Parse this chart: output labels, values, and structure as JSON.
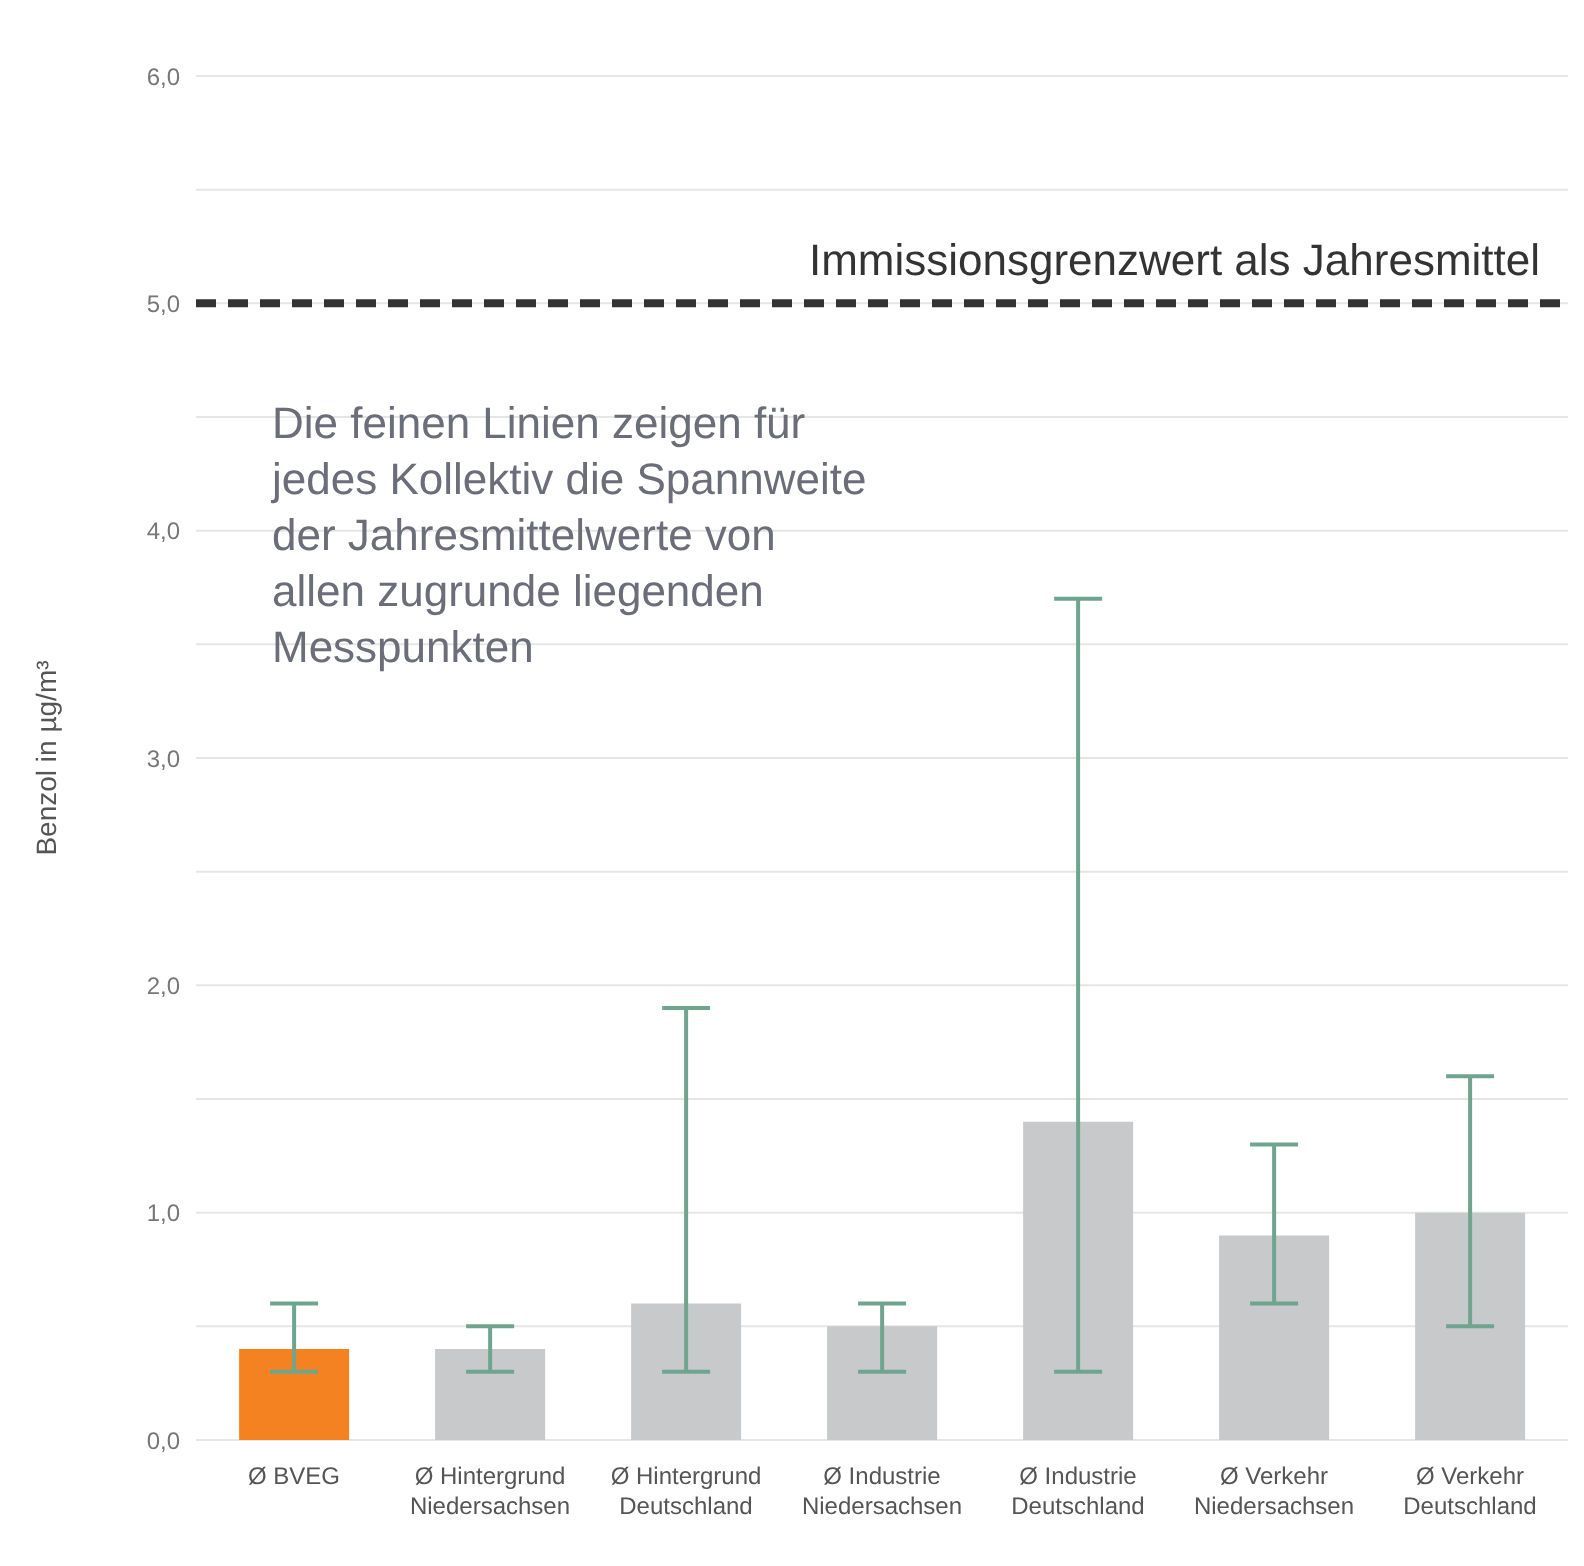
{
  "chart_data": {
    "type": "bar",
    "categories": [
      "Ø BVEG",
      "Ø Hintergrund Niedersachsen",
      "Ø Hintergrund Deutschland",
      "Ø Industrie Niedersachsen",
      "Ø Industrie Deutschland",
      "Ø Verkehr Niedersachsen",
      "Ø Verkehr Deutschland"
    ],
    "values": [
      0.4,
      0.4,
      0.6,
      0.5,
      1.4,
      0.9,
      1.0
    ],
    "colors": [
      "#f58220",
      "#c8c9cb",
      "#c8c9cb",
      "#c8c9cb",
      "#c8c9cb",
      "#c8c9cb",
      "#c8c9cb"
    ],
    "errors": [
      [
        0.3,
        0.6
      ],
      [
        0.3,
        0.5
      ],
      [
        0.3,
        1.9
      ],
      [
        0.3,
        0.6
      ],
      [
        0.3,
        3.7
      ],
      [
        0.6,
        1.3
      ],
      [
        0.5,
        1.6
      ]
    ],
    "ylabel": "Benzol in µg/m³",
    "ylim": [
      0,
      6
    ],
    "yticks": [
      {
        "value": 0,
        "label": "0,0"
      },
      {
        "value": 0.5,
        "label": null
      },
      {
        "value": 1,
        "label": "1,0"
      },
      {
        "value": 1.5,
        "label": null
      },
      {
        "value": 2,
        "label": "2,0"
      },
      {
        "value": 2.5,
        "label": null
      },
      {
        "value": 3,
        "label": "3,0"
      },
      {
        "value": 3.5,
        "label": null
      },
      {
        "value": 4,
        "label": "4,0"
      },
      {
        "value": 4.5,
        "label": null
      },
      {
        "value": 5,
        "label": "5,0"
      },
      {
        "value": 5.5,
        "label": null
      },
      {
        "value": 6,
        "label": "6,0"
      }
    ],
    "grid": "y",
    "ref_lines": [
      {
        "axis": "y",
        "value": 5,
        "label": "Immissionsgrenzwert als Jahresmittel",
        "color": "#333333",
        "line_style": "dashed"
      }
    ],
    "annotations": [
      "Die feinen Linien zeigen für jedes Kollektiv die Spannweite der Jahresmittelwerte von allen zugrunde liegenden Messpunkten"
    ]
  }
}
